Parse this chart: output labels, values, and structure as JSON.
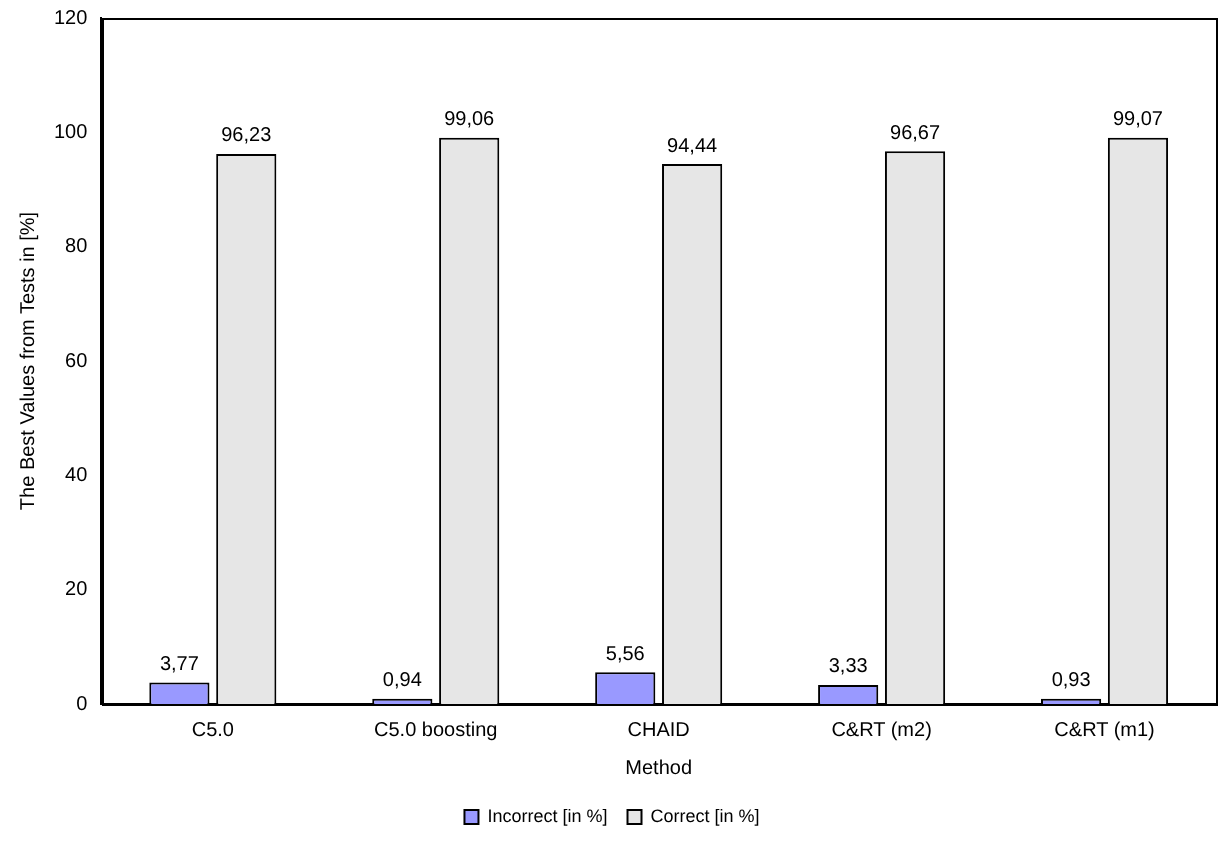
{
  "chart_data": {
    "type": "bar",
    "xlabel": "Method",
    "ylabel": "The Best Values from Tests in [%]",
    "categories": [
      "C5.0",
      "C5.0 boosting",
      "CHAID",
      "C&RT (m2)",
      "C&RT (m1)"
    ],
    "series": [
      {
        "name": "Incorrect [in %]",
        "color": "#9999ff",
        "values": [
          3.77,
          0.94,
          5.56,
          3.33,
          0.93
        ],
        "value_labels": [
          "3,77",
          "0,94",
          "5,56",
          "3,33",
          "0,93"
        ]
      },
      {
        "name": "Correct [in %]",
        "color": "#e6e6e6",
        "values": [
          96.23,
          99.06,
          94.44,
          96.67,
          99.07
        ],
        "value_labels": [
          "96,23",
          "99,06",
          "94,44",
          "96,67",
          "99,07"
        ]
      }
    ],
    "ylim": [
      0,
      120
    ],
    "yticks": [
      0,
      20,
      40,
      60,
      80,
      100,
      120
    ],
    "grid": false,
    "legend": "bottom"
  }
}
